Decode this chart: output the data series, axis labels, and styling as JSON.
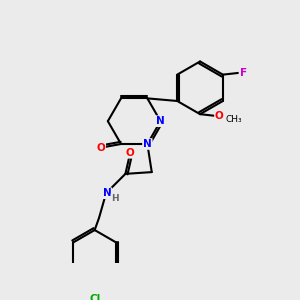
{
  "background_color": "#ebebeb",
  "bond_color": "#000000",
  "atom_colors": {
    "N": "#0000ff",
    "O": "#ff0000",
    "F": "#cc00cc",
    "Cl": "#00aa00",
    "C": "#000000",
    "H": "#666666"
  },
  "figsize": [
    3.0,
    3.0
  ],
  "dpi": 100
}
